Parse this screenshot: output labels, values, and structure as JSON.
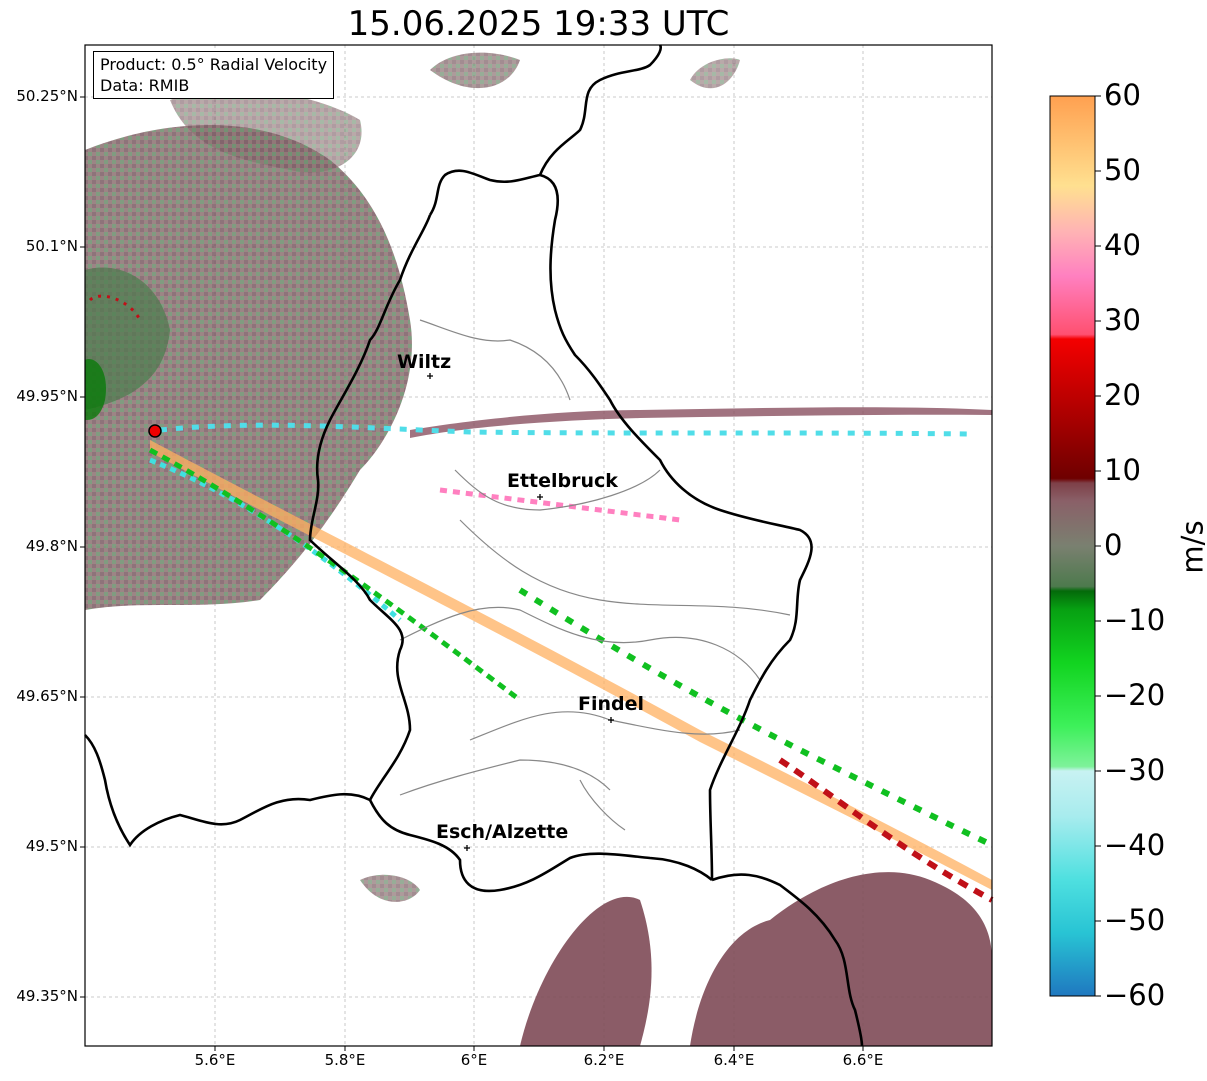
{
  "title": "15.06.2025 19:33 UTC",
  "info": {
    "product": "Product: 0.5° Radial Velocity",
    "data": "Data: RMIB"
  },
  "lat_labels": [
    "50.25°N",
    "50.1°N",
    "49.95°N",
    "49.8°N",
    "49.65°N",
    "49.5°N",
    "49.35°N"
  ],
  "lon_labels": [
    "5.6°E",
    "5.8°E",
    "6°E",
    "6.2°E",
    "6.4°E",
    "6.6°E"
  ],
  "cities": [
    {
      "name": "Wiltz",
      "lon": 5.93,
      "lat": 49.965
    },
    {
      "name": "Ettelbruck",
      "lon": 6.1,
      "lat": 49.848
    },
    {
      "name": "Findel",
      "lon": 6.21,
      "lat": 49.626
    },
    {
      "name": "Esch/Alzette",
      "lon": 5.99,
      "lat": 49.499
    }
  ],
  "radar_site": {
    "lon": 5.505,
    "lat": 49.915
  },
  "colorbar": {
    "ticks": [
      "60",
      "50",
      "40",
      "30",
      "20",
      "10",
      "0",
      "−10",
      "−20",
      "−30",
      "−40",
      "−50",
      "−60"
    ],
    "unit": "m/s",
    "range": [
      -60,
      60
    ]
  }
}
